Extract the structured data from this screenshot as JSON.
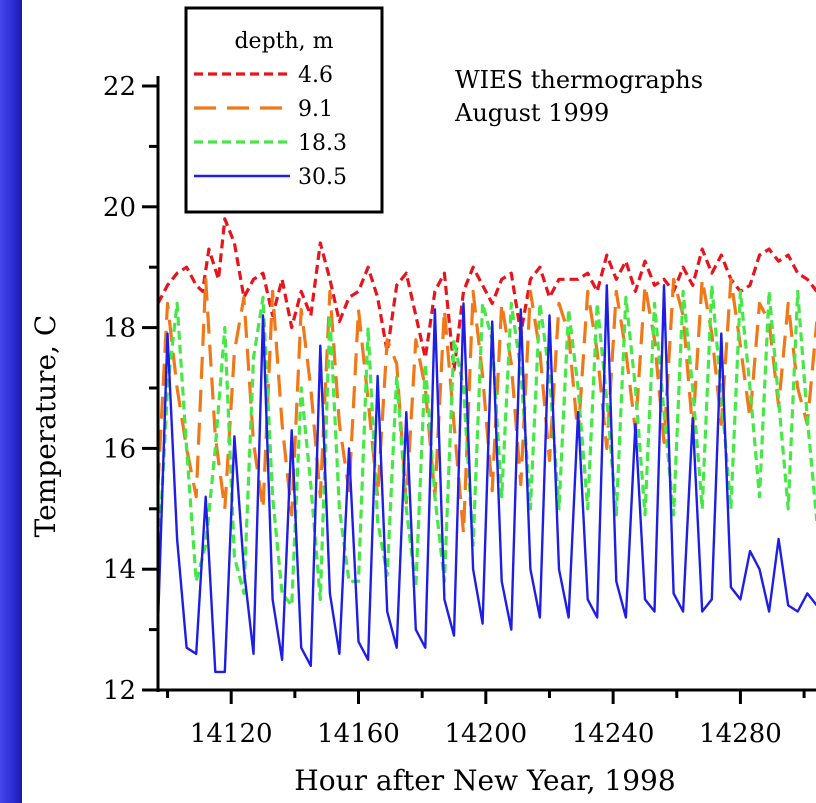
{
  "chart_data": {
    "type": "line",
    "title": "",
    "annotation": [
      "WIES thermographs",
      "August 1999"
    ],
    "xlabel": "Hour after New Year, 1998",
    "ylabel": "Temperature, C",
    "xlim": [
      14097,
      14305
    ],
    "ylim": [
      12,
      22
    ],
    "xticks": [
      14120,
      14160,
      14200,
      14240,
      14280
    ],
    "yticks": [
      12,
      14,
      16,
      18,
      20,
      22
    ],
    "grid": false,
    "legend": {
      "title": "depth, m",
      "position": "top-left"
    },
    "series": [
      {
        "name": "4.6",
        "color": "#e8141c",
        "dash": "9,5",
        "x": [
          14097,
          14100,
          14103,
          14106,
          14109,
          14111,
          14113,
          14116,
          14118,
          14121,
          14124,
          14127,
          14130,
          14133,
          14136,
          14139,
          14142,
          14145,
          14148,
          14151,
          14154,
          14157,
          14160,
          14163,
          14166,
          14169,
          14172,
          14175,
          14178,
          14181,
          14184,
          14187,
          14190,
          14193,
          14196,
          14199,
          14202,
          14205,
          14208,
          14211,
          14214,
          14217,
          14220,
          14223,
          14226,
          14229,
          14232,
          14235,
          14238,
          14241,
          14244,
          14247,
          14250,
          14253,
          14256,
          14259,
          14262,
          14265,
          14268,
          14271,
          14274,
          14277,
          14280,
          14283,
          14286,
          14289,
          14292,
          14295,
          14298,
          14301,
          14304
        ],
        "y": [
          18.4,
          18.7,
          18.9,
          19.0,
          18.7,
          18.6,
          19.3,
          18.8,
          19.8,
          19.4,
          18.5,
          18.8,
          18.9,
          18.2,
          18.8,
          18.0,
          18.6,
          18.2,
          19.4,
          18.8,
          18.1,
          18.5,
          18.6,
          19.0,
          18.5,
          17.6,
          18.7,
          18.9,
          18.2,
          17.5,
          18.6,
          18.9,
          17.3,
          18.6,
          19.0,
          18.7,
          18.4,
          18.8,
          18.9,
          17.9,
          18.8,
          19.0,
          18.5,
          18.8,
          18.8,
          18.8,
          18.9,
          18.6,
          19.2,
          18.8,
          19.1,
          18.6,
          19.1,
          18.7,
          18.8,
          18.6,
          19.0,
          18.7,
          19.3,
          18.9,
          19.2,
          18.8,
          18.6,
          18.7,
          19.2,
          19.3,
          19.1,
          19.2,
          18.9,
          18.8,
          18.6
        ]
      },
      {
        "name": "9.1",
        "color": "#f07818",
        "dash": "22,11",
        "x": [
          14097,
          14100,
          14103,
          14106,
          14109,
          14112,
          14115,
          14118,
          14121,
          14124,
          14127,
          14130,
          14133,
          14136,
          14139,
          14142,
          14145,
          14148,
          14151,
          14154,
          14157,
          14160,
          14163,
          14166,
          14169,
          14172,
          14175,
          14178,
          14181,
          14184,
          14187,
          14190,
          14193,
          14196,
          14199,
          14202,
          14205,
          14208,
          14211,
          14214,
          14217,
          14220,
          14223,
          14226,
          14229,
          14232,
          14235,
          14238,
          14241,
          14244,
          14247,
          14250,
          14253,
          14256,
          14259,
          14262,
          14265,
          14268,
          14271,
          14274,
          14277,
          14280,
          14283,
          14286,
          14289,
          14292,
          14295,
          14298,
          14301,
          14304
        ],
        "y": [
          15.4,
          18.4,
          17.0,
          16.0,
          15.2,
          18.8,
          16.2,
          15.0,
          17.6,
          18.5,
          16.1,
          15.0,
          18.6,
          16.4,
          14.9,
          18.3,
          17.0,
          15.2,
          18.6,
          16.4,
          15.3,
          18.3,
          16.8,
          15.2,
          17.8,
          17.4,
          15.1,
          17.8,
          17.0,
          15.2,
          18.3,
          16.4,
          14.6,
          18.6,
          17.2,
          15.3,
          18.4,
          17.4,
          15.4,
          18.6,
          17.6,
          15.8,
          18.4,
          17.9,
          16.2,
          18.6,
          17.6,
          16.0,
          18.6,
          17.6,
          16.3,
          18.7,
          17.8,
          16.1,
          18.8,
          18.2,
          16.3,
          18.8,
          17.9,
          16.4,
          18.8,
          17.7,
          16.5,
          18.4,
          18.1,
          16.7,
          18.4,
          17.0,
          16.4,
          18.1
        ]
      },
      {
        "name": "18.3",
        "color": "#46e846",
        "dash": "9,5",
        "x": [
          14097,
          14100,
          14103,
          14106,
          14109,
          14112,
          14115,
          14118,
          14121,
          14124,
          14127,
          14130,
          14133,
          14136,
          14139,
          14142,
          14145,
          14148,
          14151,
          14154,
          14157,
          14160,
          14163,
          14166,
          14169,
          14172,
          14175,
          14178,
          14181,
          14184,
          14187,
          14190,
          14193,
          14196,
          14199,
          14202,
          14205,
          14208,
          14211,
          14214,
          14217,
          14220,
          14223,
          14226,
          14229,
          14232,
          14235,
          14238,
          14241,
          14244,
          14247,
          14250,
          14253,
          14256,
          14259,
          14262,
          14265,
          14268,
          14271,
          14274,
          14277,
          14280,
          14283,
          14286,
          14289,
          14292,
          14295,
          14298,
          14301,
          14304
        ],
        "y": [
          14.0,
          17.0,
          18.4,
          16.0,
          13.8,
          14.4,
          16.0,
          18.0,
          14.2,
          13.6,
          17.5,
          18.5,
          15.2,
          13.6,
          13.4,
          17.0,
          15.4,
          13.5,
          18.2,
          15.0,
          13.8,
          13.8,
          18.0,
          14.8,
          13.9,
          17.2,
          15.0,
          13.7,
          17.4,
          15.2,
          13.8,
          17.8,
          17.0,
          14.4,
          18.4,
          17.8,
          15.2,
          18.4,
          17.3,
          15.0,
          18.4,
          17.2,
          15.0,
          18.3,
          17.0,
          15.0,
          18.4,
          16.8,
          14.9,
          18.5,
          17.0,
          14.9,
          18.4,
          16.6,
          14.9,
          18.6,
          17.0,
          15.0,
          18.7,
          16.9,
          15.0,
          18.6,
          17.0,
          15.2,
          18.6,
          16.8,
          15.0,
          18.6,
          16.5,
          14.8
        ]
      },
      {
        "name": "30.5",
        "color": "#1e1ee6",
        "dash": "",
        "x": [
          14097,
          14100,
          14103,
          14106,
          14109,
          14112,
          14115,
          14118,
          14121,
          14124,
          14127,
          14130,
          14133,
          14136,
          14139,
          14142,
          14145,
          14148,
          14151,
          14154,
          14157,
          14160,
          14163,
          14166,
          14169,
          14172,
          14175,
          14178,
          14181,
          14184,
          14187,
          14190,
          14193,
          14196,
          14199,
          14202,
          14205,
          14208,
          14211,
          14214,
          14217,
          14220,
          14223,
          14226,
          14229,
          14232,
          14235,
          14238,
          14241,
          14244,
          14247,
          14250,
          14253,
          14256,
          14259,
          14262,
          14265,
          14268,
          14271,
          14274,
          14277,
          14280,
          14283,
          14286,
          14289,
          14292,
          14295,
          14298,
          14301,
          14304
        ],
        "y": [
          13.1,
          17.9,
          14.5,
          12.7,
          12.6,
          15.2,
          12.3,
          12.3,
          16.2,
          14.0,
          12.6,
          18.2,
          13.5,
          12.5,
          16.3,
          12.7,
          12.4,
          17.7,
          13.6,
          12.6,
          16.0,
          12.8,
          12.5,
          17.2,
          13.3,
          12.7,
          16.6,
          13.0,
          12.7,
          18.3,
          13.5,
          12.9,
          18.4,
          14.0,
          13.1,
          18.1,
          13.8,
          13.0,
          18.3,
          14.0,
          13.2,
          18.2,
          14.0,
          13.2,
          16.6,
          13.5,
          13.2,
          18.7,
          13.8,
          13.2,
          16.4,
          13.5,
          13.3,
          18.7,
          13.6,
          13.3,
          16.5,
          13.3,
          13.5,
          17.9,
          13.7,
          13.5,
          14.3,
          14.0,
          13.3,
          14.5,
          13.4,
          13.3,
          13.6,
          13.4
        ]
      }
    ]
  }
}
